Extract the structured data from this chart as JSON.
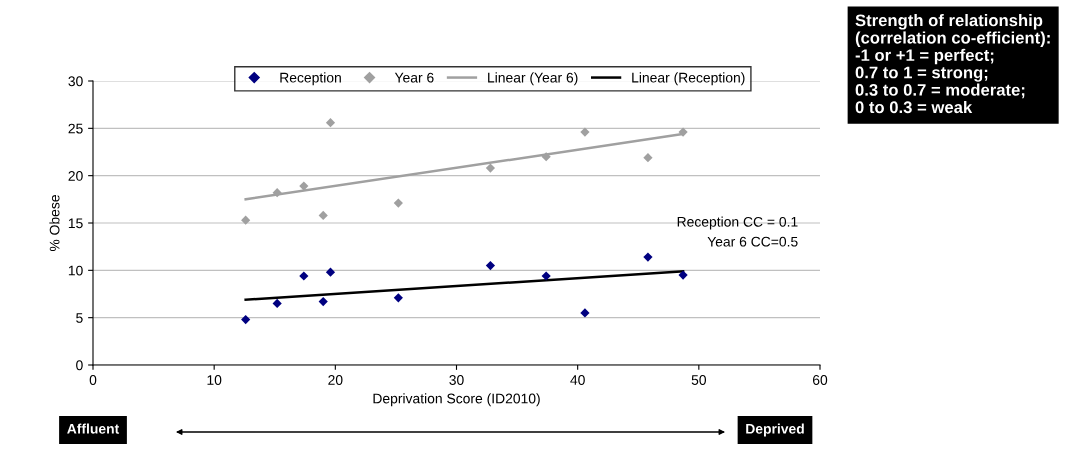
{
  "chart_data": {
    "type": "scatter",
    "xlabel": "Deprivation Score (ID2010)",
    "ylabel": "% Obese",
    "xlim": [
      0,
      60
    ],
    "xticks": [
      0,
      10,
      20,
      30,
      40,
      50,
      60
    ],
    "ylim": [
      0,
      30
    ],
    "yticks": [
      0,
      5,
      10,
      15,
      20,
      25,
      30
    ],
    "grid": "y",
    "legend": "top",
    "series": [
      {
        "name": "Reception",
        "marker": "diamond",
        "color": "#000080",
        "x": [
          12.6,
          15.2,
          17.4,
          19.0,
          19.6,
          25.2,
          32.8,
          37.4,
          40.6,
          45.8,
          48.7
        ],
        "values": [
          4.8,
          6.5,
          9.4,
          6.7,
          9.8,
          7.1,
          10.5,
          9.4,
          5.5,
          11.4,
          9.5
        ]
      },
      {
        "name": "Year 6",
        "marker": "diamond",
        "color": "#a0a0a0",
        "x": [
          12.6,
          15.2,
          17.4,
          19.0,
          19.6,
          25.2,
          32.8,
          37.4,
          40.6,
          45.8,
          48.7
        ],
        "values": [
          15.3,
          18.2,
          18.9,
          15.8,
          25.6,
          17.1,
          20.8,
          22.0,
          24.6,
          21.9,
          24.6
        ]
      },
      {
        "name": "Linear (Year 6)",
        "type": "line",
        "color": "#a0a0a0",
        "x": [
          12.6,
          48.7
        ],
        "values": [
          17.5,
          24.4
        ]
      },
      {
        "name": "Linear (Reception)",
        "type": "line",
        "color": "#000000",
        "x": [
          12.6,
          48.7
        ],
        "values": [
          6.9,
          9.9
        ]
      }
    ],
    "annotations": [
      "Reception CC = 0.1",
      "Year 6 CC=0.5",
      "Strength of relationship\n(correlation co-efficient):\n-1 or +1 = perfect;\n0.7 to 1 = strong;\n0.3 to 0.7 = moderate;\n0 to 0.3 = weak",
      "Affluent",
      "Deprived"
    ]
  }
}
